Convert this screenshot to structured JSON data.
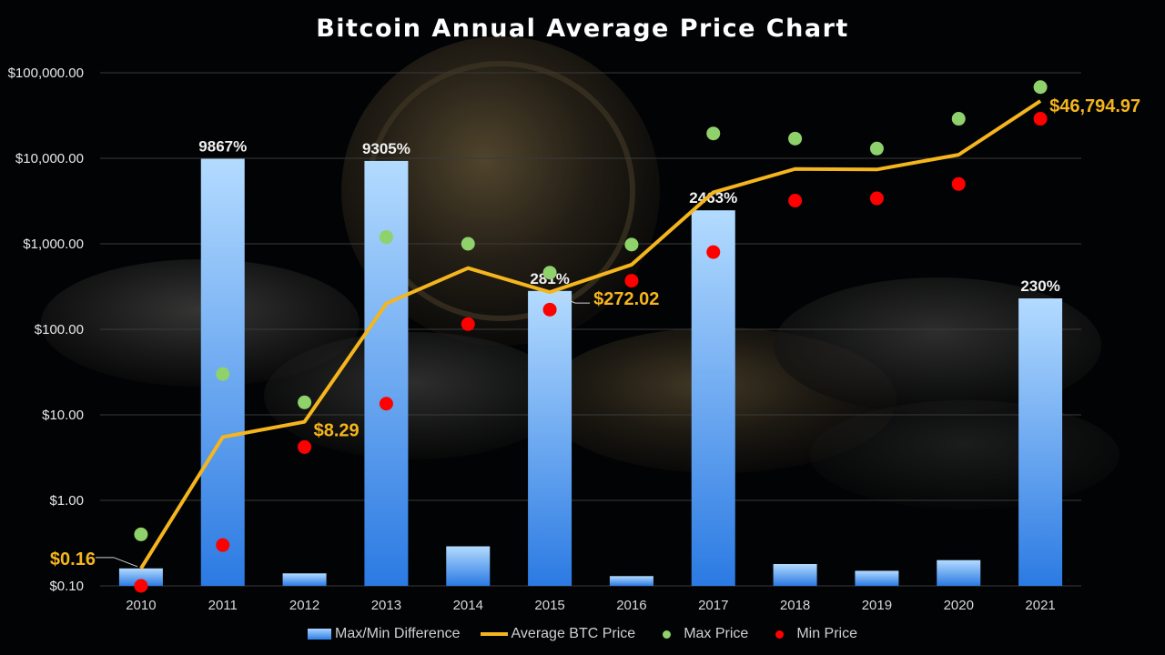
{
  "chart_data": {
    "type": "bar+line+scatter",
    "title": "Bitcoin Annual Average Price Chart",
    "y_scale": "log",
    "ylim": [
      0.1,
      100000
    ],
    "y_ticks": [
      "$0.10",
      "$1.00",
      "$10.00",
      "$100.00",
      "$1,000.00",
      "$10,000.00",
      "$100,000.00"
    ],
    "categories": [
      "2010",
      "2011",
      "2012",
      "2013",
      "2014",
      "2015",
      "2016",
      "2017",
      "2018",
      "2019",
      "2020",
      "2021"
    ],
    "series": [
      {
        "name": "Max/Min Difference",
        "kind": "bar",
        "values_percent": [
          0.16,
          9867,
          0.14,
          9305,
          0.29,
          281,
          0.13,
          2463,
          0.18,
          0.15,
          0.2,
          230
        ],
        "labels": [
          "",
          "9867%",
          "",
          "9305%",
          "",
          "281%",
          "",
          "2463%",
          "",
          "",
          "",
          "230%"
        ]
      },
      {
        "name": "Average BTC Price",
        "kind": "line",
        "color": "#f5b51d",
        "values": [
          0.16,
          5.5,
          8.29,
          200,
          520,
          272.02,
          570,
          4000,
          7500,
          7400,
          11000,
          46794.97
        ],
        "labels": [
          "$0.16",
          "",
          "$8.29",
          "",
          "",
          "$272.02",
          "",
          "",
          "",
          "",
          "",
          "$46,794.97"
        ]
      },
      {
        "name": "Max Price",
        "kind": "scatter",
        "color": "#8fd16a",
        "values": [
          0.4,
          30,
          14,
          1200,
          1000,
          460,
          980,
          19500,
          17000,
          13000,
          29000,
          68000
        ]
      },
      {
        "name": "Min Price",
        "kind": "scatter",
        "color": "#ff0000",
        "values": [
          0.1,
          0.3,
          4.2,
          13.5,
          115,
          170,
          370,
          800,
          3200,
          3400,
          5000,
          29000
        ]
      }
    ],
    "legend_position": "bottom",
    "grid": true
  }
}
